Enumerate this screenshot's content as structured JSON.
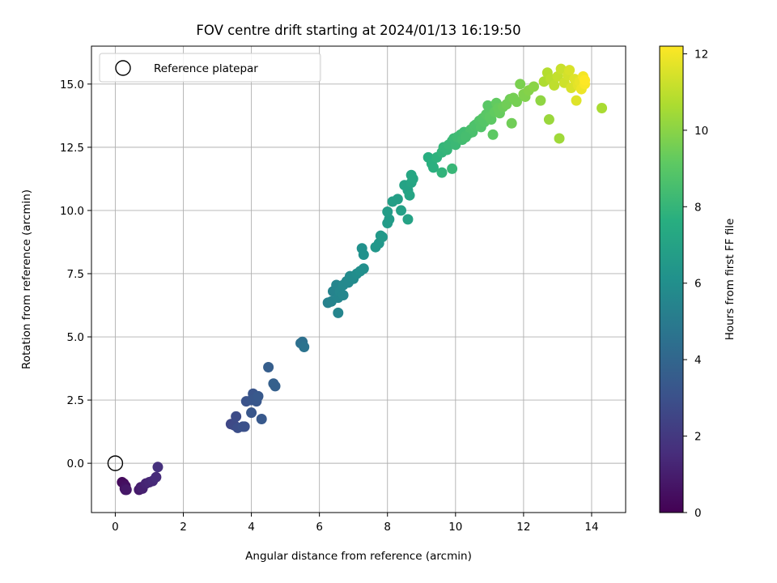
{
  "chart_data": {
    "type": "scatter",
    "title": "FOV centre drift starting at 2024/01/13 16:19:50",
    "xlabel": "Angular distance from reference (arcmin)",
    "ylabel": "Rotation from reference (arcmin)",
    "xlim": [
      -0.7,
      15.0
    ],
    "ylim": [
      -1.95,
      16.5
    ],
    "xticks": [
      0,
      2,
      4,
      6,
      8,
      10,
      12,
      14
    ],
    "xtick_labels": [
      "0",
      "2",
      "4",
      "6",
      "8",
      "10",
      "12",
      "14"
    ],
    "yticks": [
      0.0,
      2.5,
      5.0,
      7.5,
      10.0,
      12.5,
      15.0
    ],
    "ytick_labels": [
      "0.0",
      "2.5",
      "5.0",
      "7.5",
      "10.0",
      "12.5",
      "15.0"
    ],
    "grid": true,
    "legend": {
      "placement": "top-left",
      "entries": [
        "Reference platepar"
      ]
    },
    "reference_point": {
      "x": 0,
      "y": 0,
      "label": "Reference platepar"
    },
    "colorbar": {
      "label": "Hours from first FF file",
      "colormap": "viridis",
      "range": [
        0,
        12.2
      ],
      "ticks": [
        0,
        2,
        4,
        6,
        8,
        10,
        12
      ],
      "tick_labels": [
        "0",
        "2",
        "4",
        "6",
        "8",
        "10",
        "12"
      ]
    },
    "points": [
      {
        "x": 0.2,
        "y": -0.75,
        "t": 0.3
      },
      {
        "x": 0.25,
        "y": -0.8,
        "t": 0.4
      },
      {
        "x": 0.3,
        "y": -0.9,
        "t": 0.5
      },
      {
        "x": 0.28,
        "y": -1.0,
        "t": 0.6
      },
      {
        "x": 0.3,
        "y": -1.05,
        "t": 0.7
      },
      {
        "x": 0.33,
        "y": -1.05,
        "t": 0.8
      },
      {
        "x": 0.7,
        "y": -1.05,
        "t": 0.9
      },
      {
        "x": 0.75,
        "y": -0.95,
        "t": 1.0
      },
      {
        "x": 0.8,
        "y": -1.0,
        "t": 1.1
      },
      {
        "x": 0.9,
        "y": -0.8,
        "t": 1.2
      },
      {
        "x": 1.0,
        "y": -0.75,
        "t": 1.3
      },
      {
        "x": 1.1,
        "y": -0.7,
        "t": 1.4
      },
      {
        "x": 1.2,
        "y": -0.55,
        "t": 1.5
      },
      {
        "x": 1.25,
        "y": -0.15,
        "t": 1.7
      },
      {
        "x": 3.4,
        "y": 1.55,
        "t": 2.6
      },
      {
        "x": 3.5,
        "y": 1.5,
        "t": 2.7
      },
      {
        "x": 3.55,
        "y": 1.85,
        "t": 2.8
      },
      {
        "x": 3.6,
        "y": 1.4,
        "t": 2.9
      },
      {
        "x": 3.75,
        "y": 1.45,
        "t": 3.0
      },
      {
        "x": 3.8,
        "y": 1.45,
        "t": 3.0
      },
      {
        "x": 3.85,
        "y": 2.45,
        "t": 3.1
      },
      {
        "x": 4.0,
        "y": 2.5,
        "t": 3.2
      },
      {
        "x": 4.05,
        "y": 2.75,
        "t": 3.2
      },
      {
        "x": 4.1,
        "y": 2.55,
        "t": 3.3
      },
      {
        "x": 4.15,
        "y": 2.45,
        "t": 3.3
      },
      {
        "x": 4.2,
        "y": 2.65,
        "t": 3.4
      },
      {
        "x": 4.0,
        "y": 2.0,
        "t": 3.3
      },
      {
        "x": 4.3,
        "y": 1.75,
        "t": 3.4
      },
      {
        "x": 4.5,
        "y": 3.8,
        "t": 3.6
      },
      {
        "x": 4.65,
        "y": 3.15,
        "t": 3.7
      },
      {
        "x": 4.7,
        "y": 3.05,
        "t": 3.7
      },
      {
        "x": 5.45,
        "y": 4.75,
        "t": 4.5
      },
      {
        "x": 5.5,
        "y": 4.8,
        "t": 4.5
      },
      {
        "x": 5.55,
        "y": 4.6,
        "t": 4.6
      },
      {
        "x": 6.25,
        "y": 6.35,
        "t": 5.3
      },
      {
        "x": 6.35,
        "y": 6.4,
        "t": 5.4
      },
      {
        "x": 6.4,
        "y": 6.8,
        "t": 5.4
      },
      {
        "x": 6.5,
        "y": 7.05,
        "t": 5.5
      },
      {
        "x": 6.55,
        "y": 6.55,
        "t": 5.5
      },
      {
        "x": 6.55,
        "y": 5.95,
        "t": 5.5
      },
      {
        "x": 6.6,
        "y": 6.8,
        "t": 5.6
      },
      {
        "x": 6.7,
        "y": 6.65,
        "t": 5.6
      },
      {
        "x": 6.7,
        "y": 7.05,
        "t": 5.7
      },
      {
        "x": 6.8,
        "y": 7.2,
        "t": 5.7
      },
      {
        "x": 6.85,
        "y": 7.15,
        "t": 5.7
      },
      {
        "x": 6.9,
        "y": 7.4,
        "t": 5.8
      },
      {
        "x": 7.0,
        "y": 7.3,
        "t": 5.8
      },
      {
        "x": 7.1,
        "y": 7.5,
        "t": 5.9
      },
      {
        "x": 7.2,
        "y": 7.6,
        "t": 6.0
      },
      {
        "x": 7.3,
        "y": 7.7,
        "t": 6.0
      },
      {
        "x": 7.25,
        "y": 8.5,
        "t": 6.1
      },
      {
        "x": 7.3,
        "y": 8.25,
        "t": 6.1
      },
      {
        "x": 7.65,
        "y": 8.55,
        "t": 6.4
      },
      {
        "x": 7.75,
        "y": 8.7,
        "t": 6.4
      },
      {
        "x": 7.8,
        "y": 9.0,
        "t": 6.5
      },
      {
        "x": 7.85,
        "y": 8.95,
        "t": 6.5
      },
      {
        "x": 8.0,
        "y": 9.5,
        "t": 6.6
      },
      {
        "x": 8.05,
        "y": 9.65,
        "t": 6.6
      },
      {
        "x": 8.0,
        "y": 9.95,
        "t": 6.7
      },
      {
        "x": 8.15,
        "y": 10.35,
        "t": 6.8
      },
      {
        "x": 8.3,
        "y": 10.45,
        "t": 6.8
      },
      {
        "x": 8.4,
        "y": 10.0,
        "t": 6.9
      },
      {
        "x": 8.5,
        "y": 11.0,
        "t": 7.0
      },
      {
        "x": 8.6,
        "y": 10.8,
        "t": 7.0
      },
      {
        "x": 8.65,
        "y": 10.6,
        "t": 7.1
      },
      {
        "x": 8.6,
        "y": 9.65,
        "t": 7.0
      },
      {
        "x": 8.7,
        "y": 11.1,
        "t": 7.1
      },
      {
        "x": 8.7,
        "y": 11.4,
        "t": 7.2
      },
      {
        "x": 8.75,
        "y": 11.25,
        "t": 7.2
      },
      {
        "x": 9.2,
        "y": 12.1,
        "t": 7.6
      },
      {
        "x": 9.3,
        "y": 11.85,
        "t": 7.7
      },
      {
        "x": 9.35,
        "y": 11.7,
        "t": 7.7
      },
      {
        "x": 9.45,
        "y": 12.1,
        "t": 7.8
      },
      {
        "x": 9.6,
        "y": 12.3,
        "t": 7.9
      },
      {
        "x": 9.65,
        "y": 12.5,
        "t": 8.0
      },
      {
        "x": 9.75,
        "y": 12.4,
        "t": 8.0
      },
      {
        "x": 9.8,
        "y": 12.6,
        "t": 8.1
      },
      {
        "x": 9.9,
        "y": 12.75,
        "t": 8.1
      },
      {
        "x": 9.95,
        "y": 12.85,
        "t": 8.2
      },
      {
        "x": 10.0,
        "y": 12.6,
        "t": 8.2
      },
      {
        "x": 10.05,
        "y": 12.9,
        "t": 8.3
      },
      {
        "x": 10.15,
        "y": 13.0,
        "t": 8.3
      },
      {
        "x": 10.2,
        "y": 12.8,
        "t": 8.4
      },
      {
        "x": 10.25,
        "y": 13.1,
        "t": 8.4
      },
      {
        "x": 10.3,
        "y": 12.95,
        "t": 8.5
      },
      {
        "x": 10.4,
        "y": 13.05,
        "t": 8.5
      },
      {
        "x": 10.45,
        "y": 13.2,
        "t": 8.6
      },
      {
        "x": 10.5,
        "y": 13.1,
        "t": 8.6
      },
      {
        "x": 10.55,
        "y": 13.35,
        "t": 8.7
      },
      {
        "x": 10.6,
        "y": 13.4,
        "t": 8.7
      },
      {
        "x": 10.7,
        "y": 13.55,
        "t": 8.8
      },
      {
        "x": 10.75,
        "y": 13.3,
        "t": 8.8
      },
      {
        "x": 10.8,
        "y": 13.65,
        "t": 8.9
      },
      {
        "x": 10.85,
        "y": 13.5,
        "t": 8.9
      },
      {
        "x": 10.9,
        "y": 13.8,
        "t": 9.0
      },
      {
        "x": 10.95,
        "y": 14.15,
        "t": 9.0
      },
      {
        "x": 11.0,
        "y": 13.7,
        "t": 9.1
      },
      {
        "x": 11.05,
        "y": 13.6,
        "t": 9.1
      },
      {
        "x": 11.15,
        "y": 13.9,
        "t": 9.2
      },
      {
        "x": 11.2,
        "y": 14.25,
        "t": 9.2
      },
      {
        "x": 11.25,
        "y": 14.05,
        "t": 9.3
      },
      {
        "x": 11.3,
        "y": 13.85,
        "t": 9.3
      },
      {
        "x": 11.4,
        "y": 14.1,
        "t": 9.4
      },
      {
        "x": 11.5,
        "y": 14.2,
        "t": 9.5
      },
      {
        "x": 11.6,
        "y": 14.4,
        "t": 9.5
      },
      {
        "x": 11.7,
        "y": 14.45,
        "t": 9.6
      },
      {
        "x": 11.8,
        "y": 14.3,
        "t": 9.6
      },
      {
        "x": 11.9,
        "y": 15.0,
        "t": 9.7
      },
      {
        "x": 12.0,
        "y": 14.6,
        "t": 9.8
      },
      {
        "x": 12.05,
        "y": 14.5,
        "t": 9.8
      },
      {
        "x": 12.15,
        "y": 14.75,
        "t": 9.9
      },
      {
        "x": 12.3,
        "y": 14.9,
        "t": 10.0
      },
      {
        "x": 9.6,
        "y": 11.5,
        "t": 7.9
      },
      {
        "x": 9.9,
        "y": 11.65,
        "t": 8.1
      },
      {
        "x": 10.3,
        "y": 12.9,
        "t": 8.5
      },
      {
        "x": 11.1,
        "y": 13.0,
        "t": 9.1
      },
      {
        "x": 11.65,
        "y": 13.45,
        "t": 9.5
      },
      {
        "x": 12.5,
        "y": 14.35,
        "t": 10.1
      },
      {
        "x": 12.75,
        "y": 13.6,
        "t": 10.3
      },
      {
        "x": 13.05,
        "y": 12.85,
        "t": 10.4
      },
      {
        "x": 14.3,
        "y": 14.05,
        "t": 10.6
      },
      {
        "x": 12.6,
        "y": 15.1,
        "t": 10.7
      },
      {
        "x": 12.7,
        "y": 15.45,
        "t": 10.8
      },
      {
        "x": 12.8,
        "y": 15.2,
        "t": 10.9
      },
      {
        "x": 12.9,
        "y": 14.95,
        "t": 11.0
      },
      {
        "x": 13.0,
        "y": 15.3,
        "t": 11.1
      },
      {
        "x": 13.1,
        "y": 15.6,
        "t": 11.2
      },
      {
        "x": 13.2,
        "y": 15.05,
        "t": 11.3
      },
      {
        "x": 13.3,
        "y": 15.35,
        "t": 11.4
      },
      {
        "x": 13.35,
        "y": 15.55,
        "t": 11.5
      },
      {
        "x": 13.4,
        "y": 14.85,
        "t": 11.5
      },
      {
        "x": 13.5,
        "y": 15.2,
        "t": 11.6
      },
      {
        "x": 13.55,
        "y": 14.35,
        "t": 11.6
      },
      {
        "x": 13.6,
        "y": 14.95,
        "t": 11.7
      },
      {
        "x": 13.65,
        "y": 15.1,
        "t": 11.8
      },
      {
        "x": 13.7,
        "y": 14.8,
        "t": 11.9
      },
      {
        "x": 13.75,
        "y": 15.3,
        "t": 12.0
      },
      {
        "x": 13.8,
        "y": 15.0,
        "t": 12.1
      },
      {
        "x": 13.8,
        "y": 15.15,
        "t": 12.2
      }
    ]
  }
}
